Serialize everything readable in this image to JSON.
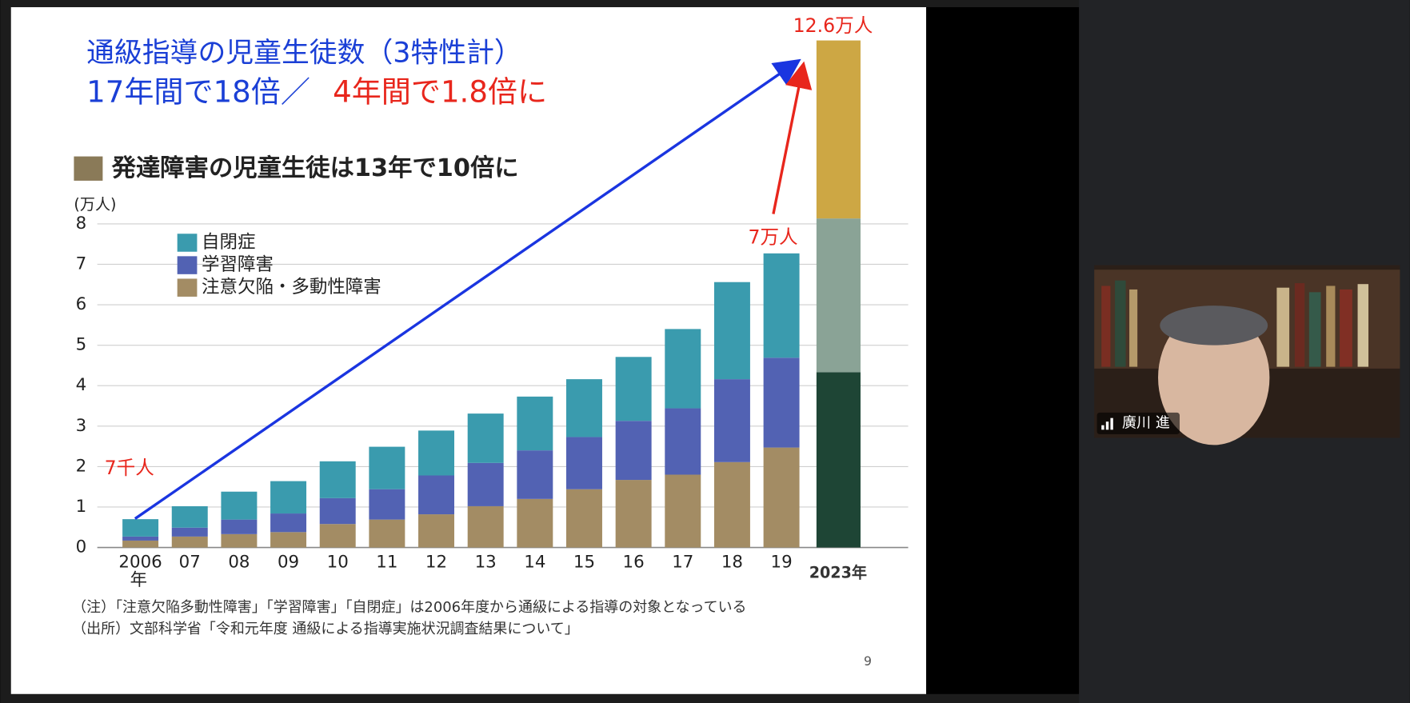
{
  "slide": {
    "heading": "通級指導の児童生徒数（3特性計）",
    "subheading_blue": "17年間で18倍／",
    "subheading_red": "4年間で1.8倍に",
    "notes": [
      "（注）「注意欠陥多動性障害」「学習障害」「自閉症」は2006年度から通級による指導の対象となっている",
      "（出所）文部科学省「令和元年度 通級による指導実施状況調査結果について」"
    ],
    "page_number": "9"
  },
  "chart_data": {
    "type": "bar",
    "stacked": true,
    "title": "発達障害の児童生徒は13年で10倍に",
    "ylabel": "(万人)",
    "xlabel": "年",
    "categories": [
      "2006",
      "07",
      "08",
      "09",
      "10",
      "11",
      "12",
      "13",
      "14",
      "15",
      "16",
      "17",
      "18",
      "19"
    ],
    "series": [
      {
        "name": "注意欠陥・多動性障害",
        "color": "#a38c64",
        "values": [
          0.17,
          0.27,
          0.33,
          0.38,
          0.58,
          0.69,
          0.82,
          1.02,
          1.2,
          1.44,
          1.67,
          1.8,
          2.11,
          2.47
        ]
      },
      {
        "name": "学習障害",
        "color": "#5262b3",
        "values": [
          0.1,
          0.22,
          0.36,
          0.46,
          0.64,
          0.75,
          0.96,
          1.07,
          1.2,
          1.29,
          1.46,
          1.64,
          2.05,
          2.22
        ]
      },
      {
        "name": "自閉症",
        "color": "#3a9bae",
        "values": [
          0.43,
          0.53,
          0.69,
          0.8,
          0.91,
          1.05,
          1.11,
          1.22,
          1.33,
          1.43,
          1.58,
          1.96,
          2.4,
          2.58
        ]
      }
    ],
    "ylim": [
      0,
      8
    ],
    "yticks": [
      0,
      1,
      2,
      3,
      4,
      5,
      6,
      7,
      8
    ],
    "grid": true,
    "annotations": [
      "7千人",
      "7万人",
      "12.6万人",
      "2023年"
    ]
  },
  "video": {
    "participant": "廣川 進"
  }
}
